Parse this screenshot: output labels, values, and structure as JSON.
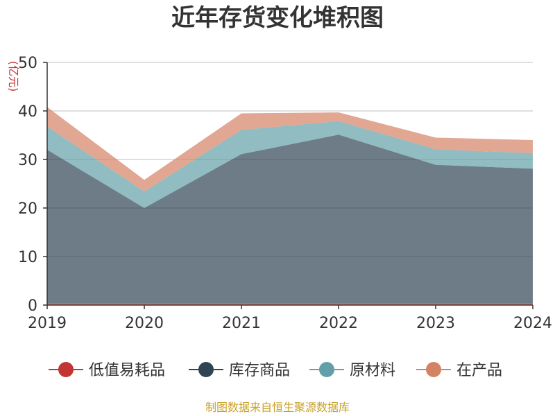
{
  "chart_data": {
    "type": "area",
    "stacked": true,
    "title": "近年存货变化堆积图",
    "unit_label": "(亿元)",
    "xlabel": "",
    "ylabel": "",
    "categories": [
      "2019",
      "2020",
      "2021",
      "2022",
      "2023",
      "2024"
    ],
    "ylim": [
      0,
      50
    ],
    "yticks": [
      0,
      10,
      20,
      30,
      40,
      50
    ],
    "grid": true,
    "legend_position": "bottom",
    "series": [
      {
        "name": "低值易耗品",
        "color": "#c23531",
        "values": [
          0.3,
          0.3,
          0.3,
          0.3,
          0.3,
          0.3
        ]
      },
      {
        "name": "库存商品",
        "color": "#2f4554",
        "values": [
          31.7,
          19.7,
          30.8,
          34.8,
          28.6,
          27.8
        ]
      },
      {
        "name": "原材料",
        "color": "#61a0a8",
        "values": [
          4.8,
          3.4,
          5.0,
          2.8,
          3.2,
          3.2
        ]
      },
      {
        "name": "在产品",
        "color": "#d48265",
        "values": [
          4.0,
          2.4,
          3.4,
          1.8,
          2.4,
          2.7
        ]
      }
    ],
    "source": "制图数据来自恒生聚源数据库"
  }
}
